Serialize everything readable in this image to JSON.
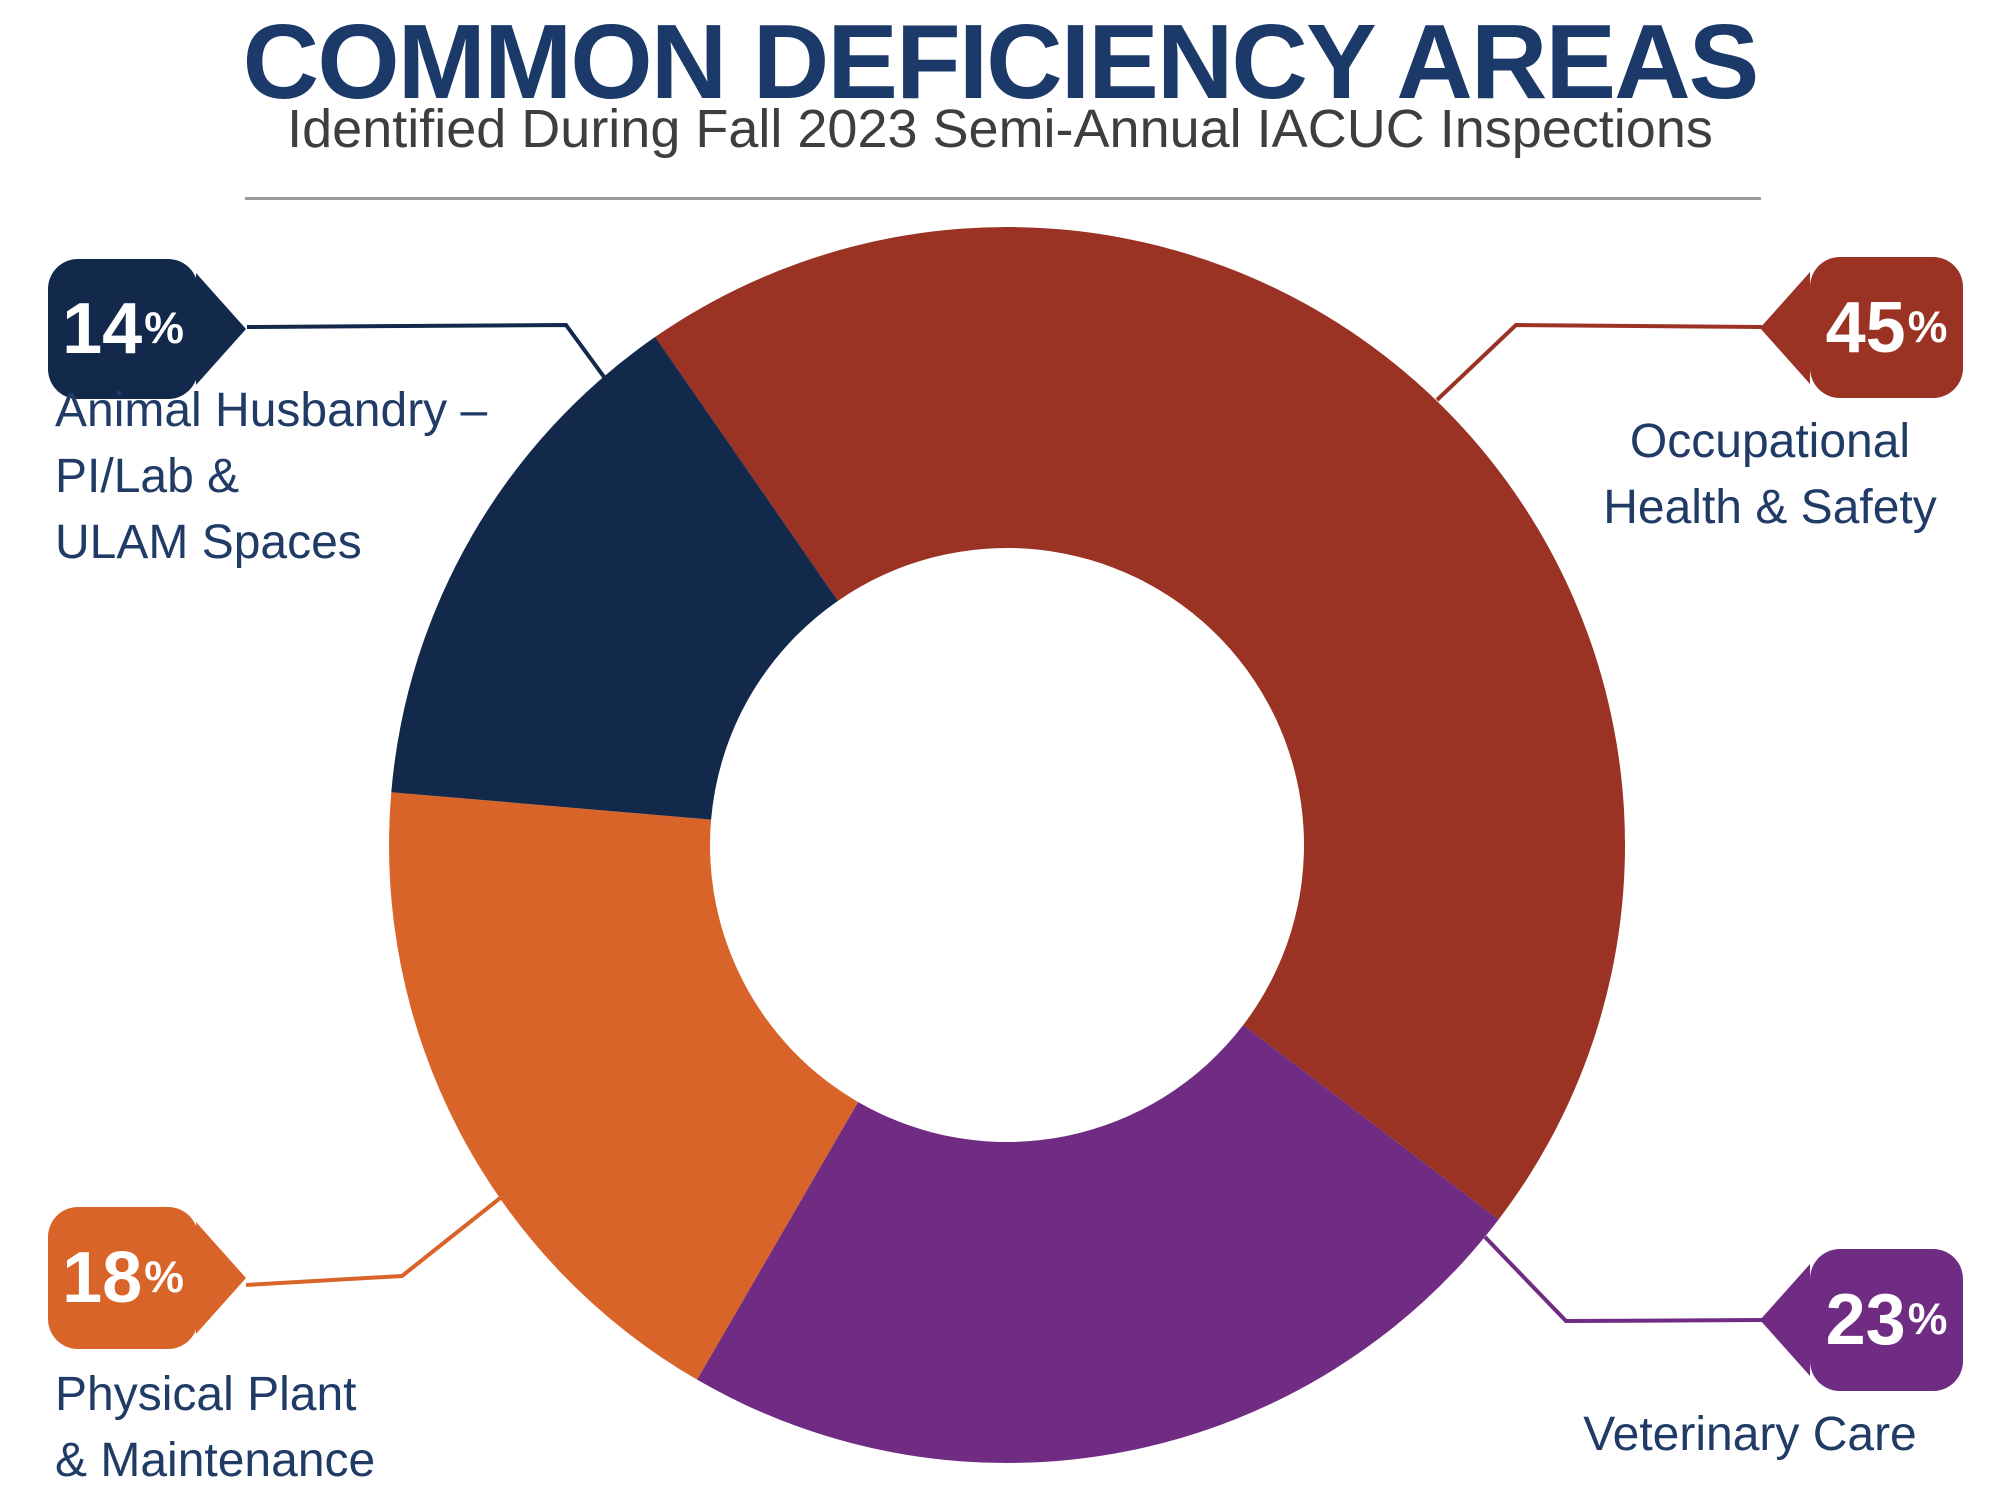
{
  "header": {
    "title": "COMMON DEFICIENCY AREAS",
    "subtitle": "Identified During Fall 2023 Semi-Annual IACUC Inspections"
  },
  "chart_data": {
    "type": "pie",
    "variant": "donut",
    "title": "COMMON DEFICIENCY AREAS",
    "subtitle": "Identified During Fall 2023 Semi-Annual IACUC Inspections",
    "direction": "clockwise",
    "start_angle_deg_clockwise_from_top": -34.7,
    "inner_to_outer_radius_ratio": 0.48,
    "legend_position": "callouts-around-chart",
    "unit": "%",
    "segments": [
      {
        "id": "occupational-health-safety",
        "label": "Occupational Health & Safety",
        "label_lines": [
          "Occupational",
          "Health & Safety"
        ],
        "value": 45,
        "display_value": "45",
        "unit": "%",
        "color": "#9A3324"
      },
      {
        "id": "veterinary-care",
        "label": "Veterinary Care",
        "label_lines": [
          "Veterinary Care"
        ],
        "value": 23,
        "display_value": "23",
        "unit": "%",
        "color": "#702B82"
      },
      {
        "id": "physical-plant-maintenance",
        "label": "Physical Plant & Maintenance",
        "label_lines": [
          "Physical Plant",
          "& Maintenance"
        ],
        "value": 18,
        "display_value": "18",
        "unit": "%",
        "color": "#D9642A"
      },
      {
        "id": "animal-husbandry-pi-lab-ulam-spaces",
        "label": "Animal Husbandry – PI/Lab & ULAM Spaces",
        "label_lines": [
          "Animal Husbandry –",
          "PI/Lab &",
          "ULAM Spaces"
        ],
        "value": 14,
        "display_value": "14",
        "unit": "%",
        "color": "#13294B"
      }
    ],
    "colors": {
      "title_navy": "#1B3A69",
      "label_navy": "#203B66",
      "subtitle_gray": "#3E3E3E",
      "divider_gray": "#9B9B9B",
      "callout_text": "#FFFFFF"
    }
  }
}
